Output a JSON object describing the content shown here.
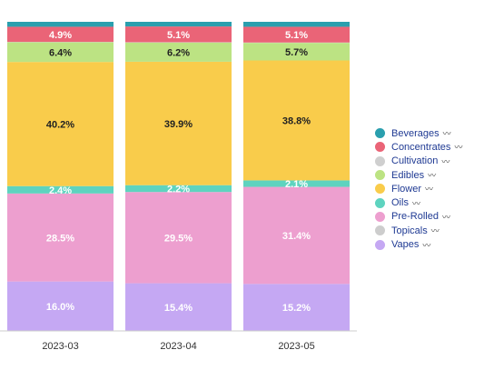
{
  "chart_data": {
    "type": "bar",
    "stacked": true,
    "normalized": true,
    "categories": [
      "2023-03",
      "2023-04",
      "2023-05"
    ],
    "ylim": [
      0,
      100
    ],
    "grid": false,
    "legend_position": "right",
    "series": [
      {
        "name": "Beverages",
        "color": "#2a9fae",
        "values": [
          1.6,
          1.5,
          1.6
        ]
      },
      {
        "name": "Concentrates",
        "color": "#ea6477",
        "values": [
          4.9,
          5.1,
          5.1
        ]
      },
      {
        "name": "Cultivation",
        "color": "#cfcfcf",
        "values": [
          0.1,
          0.1,
          0.1
        ]
      },
      {
        "name": "Edibles",
        "color": "#bce383",
        "values": [
          6.4,
          6.2,
          5.7
        ]
      },
      {
        "name": "Flower",
        "color": "#f9cc4b",
        "values": [
          40.2,
          39.9,
          38.8
        ]
      },
      {
        "name": "Oils",
        "color": "#5ed3bf",
        "values": [
          2.4,
          2.2,
          2.1
        ]
      },
      {
        "name": "Pre-Rolled",
        "color": "#ed9fcf",
        "values": [
          28.5,
          29.5,
          31.4
        ]
      },
      {
        "name": "Topicals",
        "color": "#cdcdcd",
        "values": [
          0.0,
          0.0,
          0.0
        ]
      },
      {
        "name": "Vapes",
        "color": "#c5a8f3",
        "values": [
          16.0,
          15.4,
          15.2
        ]
      }
    ],
    "data_labels": {
      "2023-03": {
        "Concentrates": "4.9%",
        "Edibles": "6.4%",
        "Flower": "40.2%",
        "Oils": "2.4%",
        "Pre-Rolled": "28.5%",
        "Vapes": "16.0%"
      },
      "2023-04": {
        "Concentrates": "5.1%",
        "Edibles": "6.2%",
        "Flower": "39.9%",
        "Oils": "2.2%",
        "Pre-Rolled": "29.5%",
        "Vapes": "15.4%"
      },
      "2023-05": {
        "Concentrates": "5.1%",
        "Edibles": "5.7%",
        "Flower": "38.8%",
        "Oils": "2.1%",
        "Pre-Rolled": "31.4%",
        "Vapes": "15.2%"
      }
    },
    "dark_label_series": [
      "Edibles",
      "Flower"
    ],
    "legend_icon": "trend-sparkline-icon",
    "legend_icon_glyph": "〰"
  }
}
